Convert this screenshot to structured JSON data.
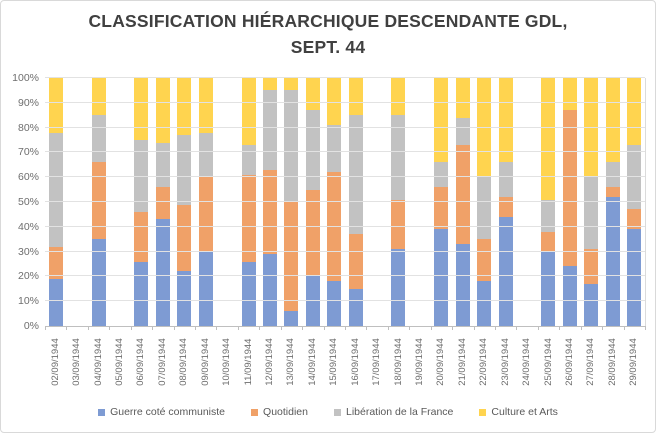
{
  "chart_data": {
    "type": "bar",
    "stacked": "percent",
    "title": "CLASSIFICATION HIÉRARCHIQUE DESCENDANTE GDL, SEPT. 44",
    "title_lines": [
      "CLASSIFICATION HIÉRARCHIQUE DESCENDANTE GDL,",
      "SEPT. 44"
    ],
    "categories": [
      "02/09/1944",
      "03/09/1944",
      "04/09/1944",
      "05/09/1944",
      "06/09/1944",
      "07/09/1944",
      "08/09/1944",
      "09/09/1944",
      "10/09/1944",
      "11/09/1944",
      "12/09/1944",
      "13/09/1944",
      "14/09/1944",
      "15/09/1944",
      "16/09/1944",
      "17/09/1944",
      "18/09/1944",
      "19/09/1944",
      "20/09/1944",
      "21/09/1944",
      "22/09/1944",
      "23/09/1944",
      "24/09/1944",
      "25/09/1944",
      "26/09/1944",
      "27/09/1944",
      "28/09/1944",
      "29/09/1944"
    ],
    "series": [
      {
        "name": "Guerre coté communiste",
        "color": "#7E9BD3",
        "values": [
          19,
          null,
          35,
          null,
          26,
          43,
          22,
          30,
          null,
          26,
          29,
          6,
          20,
          18,
          15,
          null,
          31,
          null,
          39,
          33,
          18,
          44,
          null,
          30,
          24,
          17,
          52,
          39
        ]
      },
      {
        "name": "Quotidien",
        "color": "#F0A168",
        "values": [
          13,
          null,
          31,
          null,
          20,
          13,
          27,
          30,
          null,
          35,
          34,
          44,
          35,
          44,
          22,
          null,
          20,
          null,
          17,
          40,
          17,
          8,
          null,
          8,
          63,
          14,
          4,
          8
        ]
      },
      {
        "name": "Libération de la France",
        "color": "#C2C2C2",
        "values": [
          46,
          null,
          19,
          null,
          29,
          18,
          28,
          18,
          null,
          12,
          32,
          45,
          32,
          19,
          48,
          null,
          34,
          null,
          10,
          11,
          25,
          14,
          null,
          13,
          0,
          29,
          10,
          26
        ]
      },
      {
        "name": "Culture et Arts",
        "color": "#FFD44F",
        "values": [
          22,
          null,
          15,
          null,
          25,
          26,
          23,
          22,
          null,
          27,
          5,
          5,
          13,
          19,
          15,
          null,
          15,
          null,
          34,
          16,
          40,
          34,
          null,
          49,
          13,
          40,
          34,
          27
        ]
      }
    ],
    "y_axis": {
      "min": 0,
      "max": 100,
      "ticks": [
        "0%",
        "10%",
        "20%",
        "30%",
        "40%",
        "50%",
        "60%",
        "70%",
        "80%",
        "90%",
        "100%"
      ]
    },
    "grid": true,
    "legend_position": "bottom"
  }
}
